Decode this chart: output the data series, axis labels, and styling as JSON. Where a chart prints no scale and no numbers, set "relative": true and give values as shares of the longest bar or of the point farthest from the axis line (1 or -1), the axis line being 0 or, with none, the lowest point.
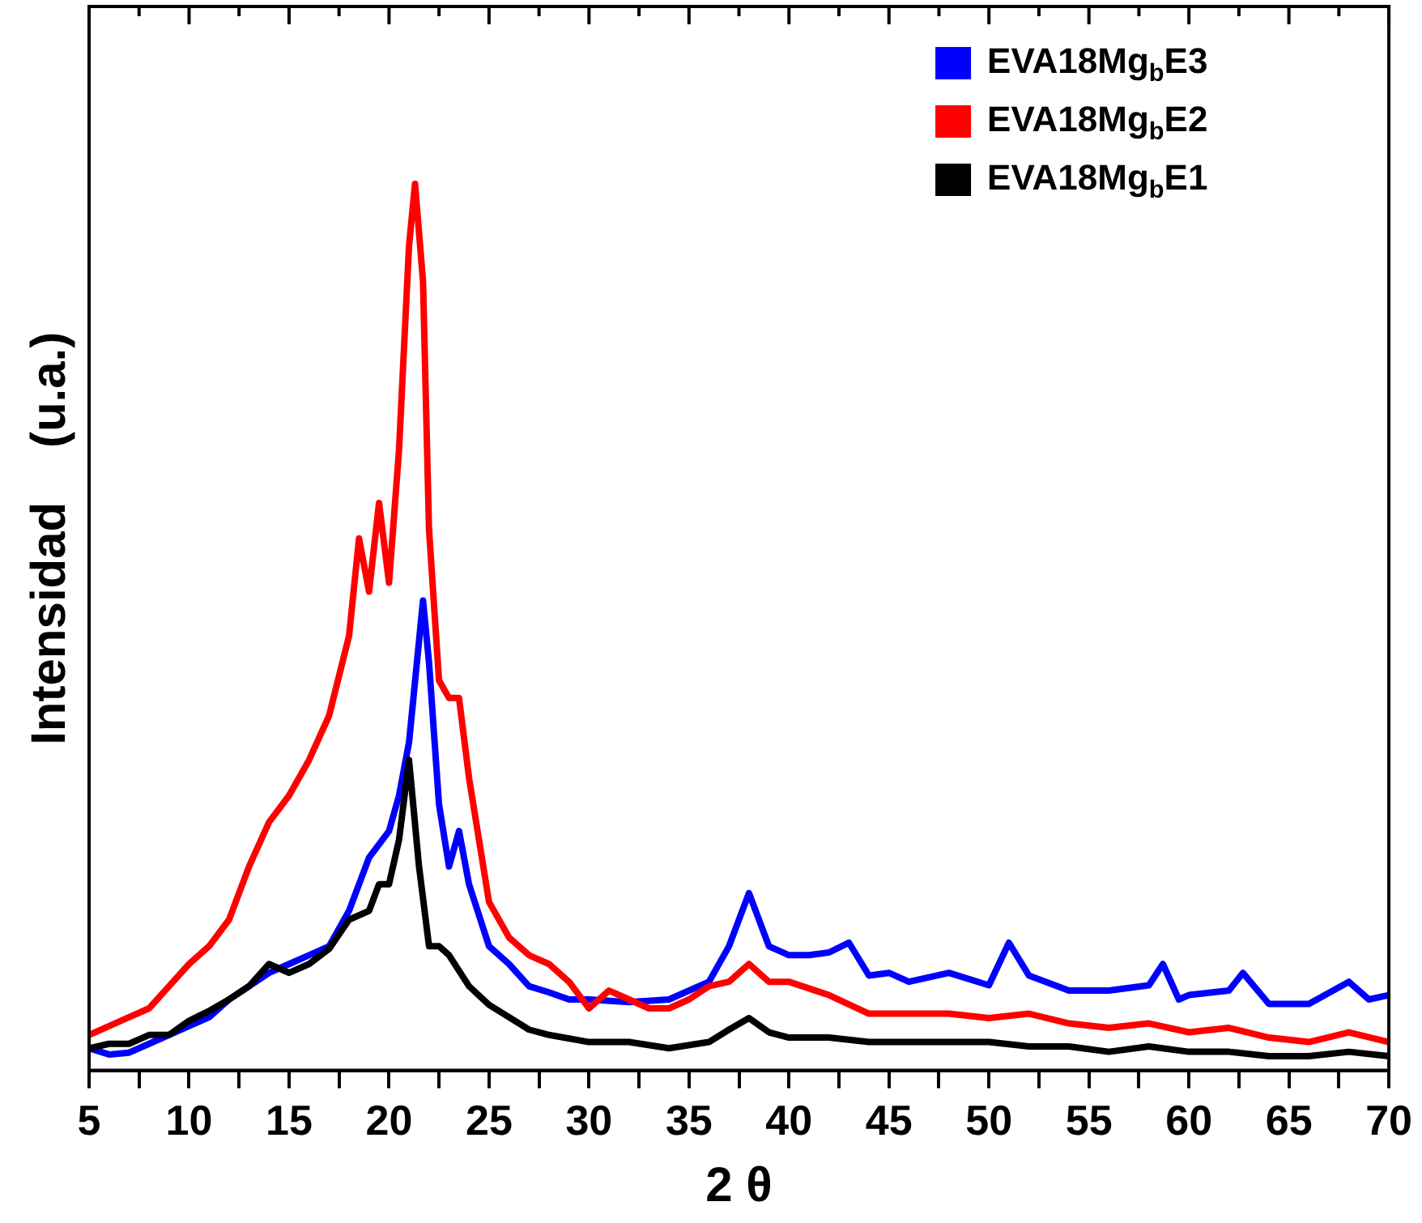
{
  "chart_data": {
    "type": "line",
    "xlabel": "2 θ",
    "ylabel": "Intensidad    (u.a.)",
    "relative": true,
    "legend": "top right",
    "marker": "none",
    "grid": false,
    "xlim": [
      5,
      70
    ],
    "xticks": [
      5,
      {
        "value": 7.5,
        "label": null
      },
      10,
      {
        "value": 12.5,
        "label": null
      },
      15,
      {
        "value": 17.5,
        "label": null
      },
      20,
      {
        "value": 22.5,
        "label": null
      },
      25,
      {
        "value": 27.5,
        "label": null
      },
      30,
      {
        "value": 32.5,
        "label": null
      },
      35,
      {
        "value": 37.5,
        "label": null
      },
      40,
      {
        "value": 42.5,
        "label": null
      },
      45,
      {
        "value": 47.5,
        "label": null
      },
      50,
      {
        "value": 52.5,
        "label": null
      },
      55,
      {
        "value": 57.5,
        "label": null
      },
      60,
      {
        "value": 62.5,
        "label": null
      },
      65,
      {
        "value": 67.5,
        "label": null
      },
      70
    ],
    "series": [
      {
        "name": "EVA18Mg$_{b}$E3",
        "color": "#0000ff",
        "x": [
          5,
          6,
          7,
          8,
          9,
          10,
          11,
          12,
          13,
          14,
          15,
          16,
          17,
          18,
          19,
          20,
          20.5,
          21,
          21.7,
          22,
          22.5,
          23,
          23.5,
          24,
          25,
          26,
          27,
          28,
          29,
          30,
          32,
          34,
          36,
          37,
          38,
          39,
          40,
          41,
          42,
          43,
          44,
          45,
          46,
          48,
          50,
          51,
          52,
          54,
          56,
          58,
          58.7,
          59.5,
          60,
          62,
          62.7,
          64,
          66,
          68,
          69,
          70
        ],
        "values": [
          0.025,
          0.018,
          0.02,
          0.03,
          0.04,
          0.05,
          0.06,
          0.08,
          0.095,
          0.11,
          0.12,
          0.13,
          0.14,
          0.18,
          0.24,
          0.27,
          0.31,
          0.37,
          0.53,
          0.46,
          0.3,
          0.23,
          0.27,
          0.21,
          0.14,
          0.12,
          0.095,
          0.088,
          0.08,
          0.08,
          0.077,
          0.08,
          0.1,
          0.14,
          0.2,
          0.14,
          0.13,
          0.13,
          0.133,
          0.144,
          0.107,
          0.11,
          0.1,
          0.11,
          0.096,
          0.144,
          0.107,
          0.09,
          0.09,
          0.096,
          0.12,
          0.08,
          0.085,
          0.09,
          0.11,
          0.075,
          0.075,
          0.1,
          0.08,
          0.085
        ]
      },
      {
        "name": "EVA18Mg$_{b}$E2",
        "color": "#ff0000",
        "x": [
          5,
          6,
          7,
          8,
          9,
          10,
          11,
          12,
          13,
          14,
          15,
          16,
          17,
          18,
          18.5,
          19,
          19.5,
          20,
          20.5,
          21,
          21.3,
          21.7,
          22,
          22.5,
          23,
          23.5,
          24,
          25,
          26,
          27,
          28,
          29,
          30,
          31,
          32,
          33,
          34,
          35,
          36,
          37,
          38,
          39,
          40,
          42,
          44,
          46,
          48,
          50,
          52,
          54,
          56,
          58,
          60,
          62,
          64,
          66,
          68,
          70
        ],
        "values": [
          0.04,
          0.05,
          0.06,
          0.07,
          0.095,
          0.12,
          0.14,
          0.17,
          0.23,
          0.28,
          0.31,
          0.35,
          0.4,
          0.49,
          0.6,
          0.54,
          0.64,
          0.55,
          0.7,
          0.93,
          1,
          0.89,
          0.61,
          0.44,
          0.42,
          0.42,
          0.33,
          0.19,
          0.15,
          0.13,
          0.12,
          0.1,
          0.07,
          0.09,
          0.08,
          0.07,
          0.07,
          0.08,
          0.095,
          0.1,
          0.12,
          0.1,
          0.1,
          0.085,
          0.064,
          0.064,
          0.064,
          0.059,
          0.064,
          0.053,
          0.048,
          0.053,
          0.043,
          0.048,
          0.037,
          0.032,
          0.043,
          0.032
        ]
      },
      {
        "name": "EVA18Mg$_{b}$E1",
        "color": "#000000",
        "x": [
          5,
          6,
          7,
          8,
          9,
          10,
          11,
          12,
          13,
          14,
          15,
          16,
          17,
          18,
          19,
          19.5,
          20,
          20.5,
          21,
          21.5,
          22,
          22.5,
          23,
          24,
          25,
          26,
          27,
          28,
          30,
          32,
          34,
          36,
          37,
          38,
          39,
          40,
          42,
          44,
          46,
          48,
          50,
          52,
          54,
          56,
          58,
          60,
          62,
          64,
          66,
          68,
          70
        ],
        "values": [
          0.025,
          0.03,
          0.03,
          0.04,
          0.04,
          0.056,
          0.067,
          0.08,
          0.095,
          0.12,
          0.11,
          0.12,
          0.137,
          0.17,
          0.18,
          0.21,
          0.21,
          0.26,
          0.35,
          0.23,
          0.14,
          0.14,
          0.13,
          0.095,
          0.074,
          0.06,
          0.046,
          0.04,
          0.032,
          0.032,
          0.025,
          0.032,
          0.046,
          0.059,
          0.043,
          0.037,
          0.037,
          0.032,
          0.032,
          0.032,
          0.032,
          0.027,
          0.027,
          0.021,
          0.027,
          0.021,
          0.021,
          0.016,
          0.016,
          0.021,
          0.016
        ]
      }
    ]
  }
}
